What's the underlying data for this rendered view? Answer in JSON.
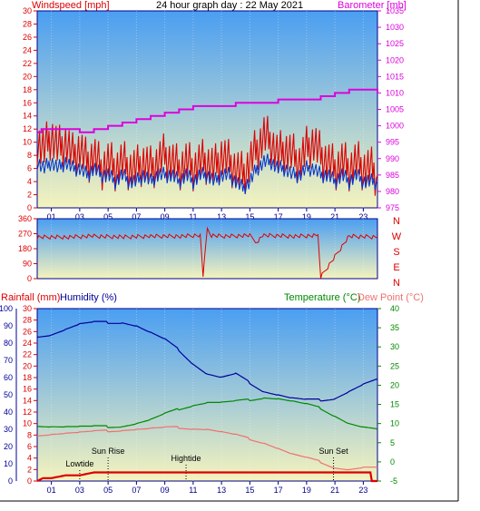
{
  "header": {
    "left_label": "Windspeed [mph]",
    "title": "24 hour graph day : 22 May 2021",
    "right_label": "Barometer [mb]"
  },
  "colors": {
    "red": "#dd0000",
    "blue": "#0033cc",
    "magenta": "#dd00dd",
    "green": "#008800",
    "pink": "#f07070",
    "navy": "#000099",
    "sky_top": "#4a9ef2",
    "sky_bottom": "#f5f3bd",
    "frame": "#000088"
  },
  "hour_ticks": [
    "01",
    "03",
    "05",
    "07",
    "09",
    "11",
    "13",
    "15",
    "17",
    "19",
    "21",
    "23"
  ],
  "bottom_labels": {
    "rainfall": "Rainfall (mm)",
    "humidity": "Humidity (%)",
    "temperature": "Temperature (°C)",
    "dewpoint": "Dew Point (°C)",
    "lowtide": "Lowtide",
    "sunrise": "Sun Rise",
    "hightide": "Hightide",
    "sunset": "Sun Set"
  },
  "direction_labels": [
    "N",
    "W",
    "S",
    "E",
    "N"
  ],
  "chart_data": [
    {
      "type": "line",
      "title": "24 hour graph day : 22 May 2021",
      "xlabel": "",
      "x_range": [
        0,
        24
      ],
      "x_ticks": [
        "01",
        "03",
        "05",
        "07",
        "09",
        "11",
        "13",
        "15",
        "17",
        "19",
        "21",
        "23"
      ],
      "left_axis": {
        "label": "Windspeed [mph]",
        "ylim": [
          0,
          30
        ],
        "ticks": [
          0,
          2,
          4,
          6,
          8,
          10,
          12,
          14,
          16,
          18,
          20,
          22,
          24,
          26,
          28,
          30
        ]
      },
      "right_axis": {
        "label": "Barometer [mb]",
        "ylim": [
          975,
          1035
        ],
        "ticks": [
          975,
          980,
          985,
          990,
          995,
          1000,
          1005,
          1010,
          1015,
          1020,
          1025,
          1030,
          1035
        ]
      },
      "series": [
        {
          "name": "Windspeed",
          "axis": "left",
          "color": "#dd0000",
          "x": [
            0,
            0.5,
            1,
            1.5,
            2,
            2.5,
            3,
            3.5,
            4,
            4.5,
            5,
            5.5,
            6,
            6.5,
            7,
            7.5,
            8,
            8.5,
            9,
            9.5,
            10,
            10.5,
            11,
            11.5,
            12,
            12.5,
            13,
            13.5,
            14,
            14.5,
            15,
            15.5,
            16,
            16.5,
            17,
            17.5,
            18,
            18.5,
            19,
            19.5,
            20,
            20.5,
            21,
            21.5,
            22,
            22.5,
            23,
            23.5,
            24
          ],
          "y": [
            10,
            9,
            11,
            9,
            10,
            8,
            9,
            7,
            8,
            6,
            7,
            6,
            7,
            6,
            6,
            7,
            6,
            7,
            8,
            7,
            6,
            7,
            6,
            7,
            7,
            6,
            8,
            7,
            6,
            5,
            7,
            9,
            11,
            10,
            8,
            9,
            8,
            7,
            9,
            10,
            8,
            7,
            6,
            7,
            6,
            7,
            6,
            6,
            5
          ]
        },
        {
          "name": "Wind gust avg",
          "axis": "left",
          "color": "#0033cc",
          "x": [
            0,
            0.5,
            1,
            1.5,
            2,
            2.5,
            3,
            3.5,
            4,
            4.5,
            5,
            5.5,
            6,
            6.5,
            7,
            7.5,
            8,
            8.5,
            9,
            9.5,
            10,
            10.5,
            11,
            11.5,
            12,
            12.5,
            13,
            13.5,
            14,
            14.5,
            15,
            15.5,
            16,
            16.5,
            17,
            17.5,
            18,
            18.5,
            19,
            19.5,
            20,
            20.5,
            21,
            21.5,
            22,
            22.5,
            23,
            23.5,
            24
          ],
          "y": [
            7,
            6,
            7,
            6,
            7,
            6,
            6,
            5,
            6,
            5,
            5,
            4,
            5,
            4,
            4,
            5,
            4,
            5,
            5,
            5,
            4,
            5,
            4,
            5,
            5,
            4,
            5,
            5,
            4,
            3,
            4,
            6,
            7,
            7,
            6,
            6,
            5,
            5,
            6,
            6,
            5,
            5,
            4,
            5,
            4,
            5,
            4,
            4,
            4
          ]
        },
        {
          "name": "Barometer",
          "axis": "right",
          "color": "#dd00dd",
          "x": [
            0,
            0.3,
            2,
            3,
            4,
            5,
            6,
            7,
            8,
            9,
            10,
            11,
            12,
            13,
            14,
            15,
            16,
            17,
            18,
            19,
            20,
            21,
            22,
            23,
            24
          ],
          "y": [
            998,
            999,
            999,
            998,
            999,
            1000,
            1001,
            1002,
            1003,
            1004,
            1005,
            1006,
            1006,
            1006,
            1007,
            1007,
            1007,
            1008,
            1008,
            1008,
            1009,
            1010,
            1011,
            1011,
            1010
          ]
        }
      ]
    },
    {
      "type": "line",
      "left_axis": {
        "ylim": [
          0,
          360
        ],
        "ticks": [
          0,
          90,
          180,
          270,
          360
        ]
      },
      "right_labels": [
        "N",
        "W",
        "S",
        "E",
        "N"
      ],
      "x_range": [
        0,
        24
      ],
      "series": [
        {
          "name": "Wind direction",
          "color": "#dd0000",
          "x": [
            0,
            2,
            4,
            6,
            8,
            10,
            11.5,
            11.7,
            12,
            12.3,
            13,
            15,
            15.5,
            16,
            18,
            19.8,
            20,
            22,
            24
          ],
          "y": [
            250,
            250,
            255,
            250,
            255,
            255,
            260,
            20,
            300,
            260,
            255,
            258,
            220,
            260,
            255,
            258,
            10,
            255,
            250
          ]
        }
      ]
    },
    {
      "type": "line",
      "x_range": [
        0,
        24
      ],
      "x_ticks": [
        "01",
        "03",
        "05",
        "07",
        "09",
        "11",
        "13",
        "15",
        "17",
        "19",
        "21",
        "23"
      ],
      "axes": {
        "humidity": {
          "label": "Humidity (%)",
          "ylim": [
            0,
            100
          ],
          "ticks": [
            0,
            10,
            20,
            30,
            40,
            50,
            60,
            70,
            80,
            90,
            100
          ]
        },
        "rainfall": {
          "label": "Rainfall (mm)",
          "ylim": [
            0,
            30
          ],
          "ticks": [
            0,
            2,
            4,
            6,
            8,
            10,
            12,
            14,
            16,
            18,
            20,
            22,
            24,
            26,
            28,
            30
          ]
        },
        "temperature": {
          "label": "Temperature (°C)",
          "ylim": [
            -5,
            40
          ],
          "ticks": [
            -5,
            0,
            5,
            10,
            15,
            20,
            25,
            30,
            35,
            40
          ]
        }
      },
      "series": [
        {
          "name": "Humidity",
          "axis": "humidity",
          "color": "#000099",
          "x": [
            0,
            1,
            2,
            3,
            4,
            5,
            6,
            7,
            8,
            9,
            10,
            11,
            12,
            13,
            14,
            15,
            16,
            17,
            18,
            19,
            20,
            21,
            22,
            23,
            24
          ],
          "y": [
            84,
            85,
            88,
            91,
            92,
            92,
            92,
            90,
            86,
            82,
            76,
            68,
            62,
            60,
            62,
            57,
            52,
            50,
            48,
            47,
            47,
            48,
            52,
            56,
            59
          ]
        },
        {
          "name": "Temperature",
          "axis": "temperature",
          "color": "#008800",
          "x": [
            0,
            1,
            2,
            3,
            4,
            5,
            6,
            7,
            8,
            9,
            10,
            11,
            12,
            13,
            14,
            15,
            16,
            17,
            18,
            19,
            20,
            21,
            22,
            23,
            24
          ],
          "y": [
            9.5,
            9.3,
            9.2,
            9.2,
            9.2,
            9.2,
            9.3,
            10,
            11,
            12.5,
            13.8,
            14.8,
            15.5,
            15.5,
            15.8,
            16.2,
            16.8,
            16.5,
            15.8,
            15,
            14,
            12,
            10,
            9,
            8.5
          ]
        },
        {
          "name": "Dew Point",
          "axis": "temperature",
          "color": "#f07070",
          "x": [
            0,
            1,
            2,
            3,
            4,
            5,
            6,
            7,
            8,
            9,
            10,
            11,
            12,
            13,
            14,
            15,
            16,
            17,
            18,
            19,
            20,
            21,
            22,
            23,
            24
          ],
          "y": [
            7,
            7.3,
            7.5,
            7.7,
            7.9,
            8.1,
            8.3,
            8.5,
            8.7,
            8.9,
            9,
            8.7,
            8.5,
            7.8,
            7,
            6,
            5,
            3.5,
            2,
            1,
            0,
            -1.5,
            -2,
            -1.5,
            -1.5
          ]
        },
        {
          "name": "Rainfall",
          "axis": "rainfall",
          "color": "#dd0000",
          "x": [
            0,
            0.4,
            1,
            2,
            3,
            4,
            5,
            6,
            8,
            10,
            12,
            14,
            16,
            18,
            20,
            22,
            23.5,
            23.6,
            24
          ],
          "y": [
            0,
            0.5,
            0.5,
            1,
            1,
            1.5,
            1.5,
            1.5,
            1.5,
            1.5,
            1.5,
            1.5,
            1.5,
            1.5,
            1.5,
            1.5,
            1.5,
            0,
            0
          ]
        }
      ],
      "annotations": [
        {
          "label": "Lowtide",
          "x": 3
        },
        {
          "label": "Sun Rise",
          "x": 5
        },
        {
          "label": "Hightide",
          "x": 10.5
        },
        {
          "label": "Sun Set",
          "x": 20.9
        }
      ]
    }
  ]
}
